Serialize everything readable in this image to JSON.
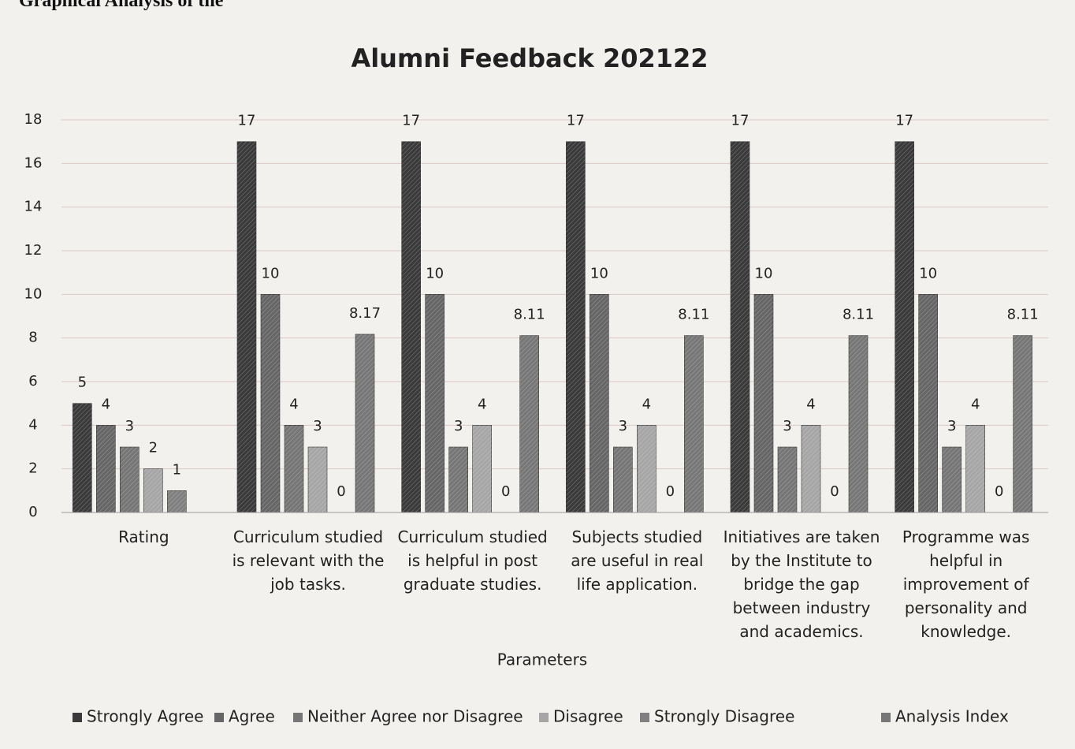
{
  "header": "Graphical Analysis of the",
  "chart_data": {
    "type": "bar",
    "title": "Alumni Feedback 202122",
    "xlabel": "Parameters",
    "categories": [
      "Rating",
      "Curriculum studied is relevant with the job tasks.",
      "Curriculum  studied is helpful in post graduate studies.",
      "Subjects studied are useful in real life application.",
      "Initiatives are taken by the Institute to bridge the gap between industry and academics.",
      "Programme was helpful in improvement of personality and knowledge."
    ],
    "series": [
      {
        "name": "Strongly Agree",
        "color": "#3a3a3a",
        "values": [
          5,
          17,
          17,
          17,
          17,
          17
        ]
      },
      {
        "name": "Agree",
        "color": "#666666",
        "values": [
          4,
          10,
          10,
          10,
          10,
          10
        ]
      },
      {
        "name": "Neither Agree nor Disagree",
        "color": "#767676",
        "values": [
          3,
          4,
          3,
          3,
          3,
          3
        ]
      },
      {
        "name": "Disagree",
        "color": "#a6a6a6",
        "values": [
          2,
          3,
          4,
          4,
          4,
          4
        ]
      },
      {
        "name": "Strongly Disagree",
        "color": "#808080",
        "values": [
          1,
          0,
          0,
          0,
          0,
          0
        ]
      },
      {
        "name": "Analysis Index",
        "color": "#777777",
        "values": [
          null,
          8.17,
          8.11,
          8.11,
          8.11,
          8.11
        ]
      }
    ],
    "ylim": [
      0,
      18
    ],
    "yticks": [
      0,
      2,
      4,
      6,
      8,
      10,
      12,
      14,
      16,
      18
    ],
    "grid": true,
    "legend": "bottom"
  }
}
